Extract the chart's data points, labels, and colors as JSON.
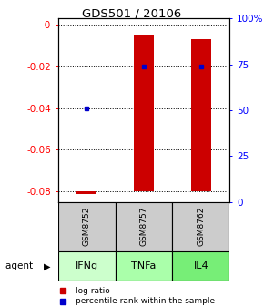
{
  "title": "GDS501 / 20106",
  "samples": [
    "GSM8752",
    "GSM8757",
    "GSM8762"
  ],
  "agents": [
    "IFNg",
    "TNFa",
    "IL4"
  ],
  "agent_colors": [
    "#ccffcc",
    "#aaffaa",
    "#77ee77"
  ],
  "log_ratios": [
    -0.081,
    -0.005,
    -0.007
  ],
  "log_ratio_bar_bottoms": [
    -0.08,
    -0.08,
    -0.08
  ],
  "percentile_ranks": [
    50,
    75,
    75
  ],
  "ylim_left": [
    -0.085,
    0.003
  ],
  "left_yticks": [
    0,
    -0.02,
    -0.04,
    -0.06,
    -0.08
  ],
  "left_yticklabels": [
    "-0",
    "-0.02",
    "-0.04",
    "-0.06",
    "-0.08"
  ],
  "right_yticks": [
    0,
    25,
    50,
    75,
    100
  ],
  "right_yticklabels": [
    "0",
    "25",
    "50",
    "75",
    "100%"
  ],
  "bar_color": "#cc0000",
  "dot_color": "#0000cc",
  "sample_box_color": "#cccccc",
  "legend_log_label": "log ratio",
  "legend_pct_label": "percentile rank within the sample",
  "bar_width": 0.35,
  "x_positions": [
    1,
    2,
    3
  ]
}
